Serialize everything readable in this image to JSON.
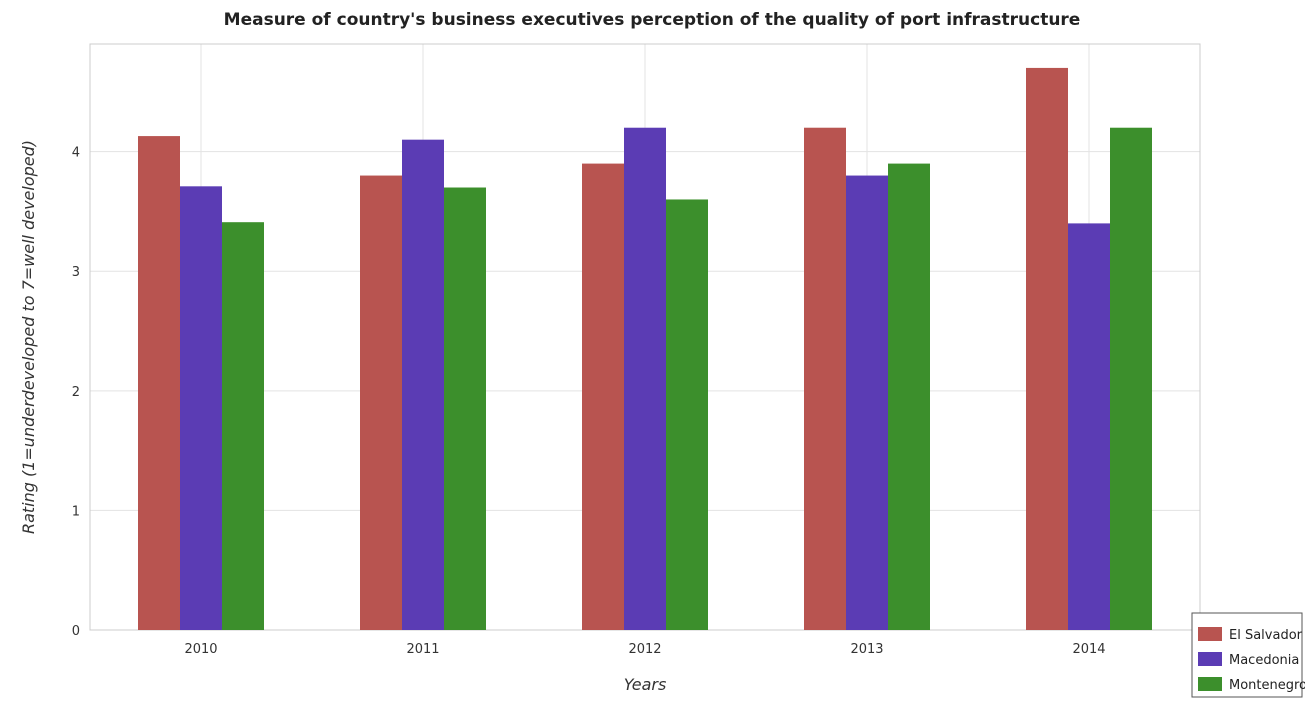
{
  "chart_data": {
    "type": "bar",
    "title": "Measure of country's business executives perception of the quality of port infrastructure",
    "xlabel": "Years",
    "ylabel": "Rating (1=underdeveloped to 7=well developed)",
    "categories": [
      "2010",
      "2011",
      "2012",
      "2013",
      "2014"
    ],
    "ylim": [
      0,
      4.9
    ],
    "yticks": [
      0,
      1,
      2,
      3,
      4
    ],
    "grid": true,
    "legend_position": "bottom-right",
    "series": [
      {
        "name": "El Salvador",
        "color": "#b85450",
        "values": [
          4.13,
          3.8,
          3.9,
          4.2,
          4.7
        ]
      },
      {
        "name": "Macedonia",
        "color": "#5b3cb4",
        "values": [
          3.71,
          4.1,
          4.2,
          3.8,
          3.4
        ]
      },
      {
        "name": "Montenegro",
        "color": "#3c8f2c",
        "values": [
          3.41,
          3.7,
          3.6,
          3.9,
          4.2
        ]
      }
    ]
  }
}
